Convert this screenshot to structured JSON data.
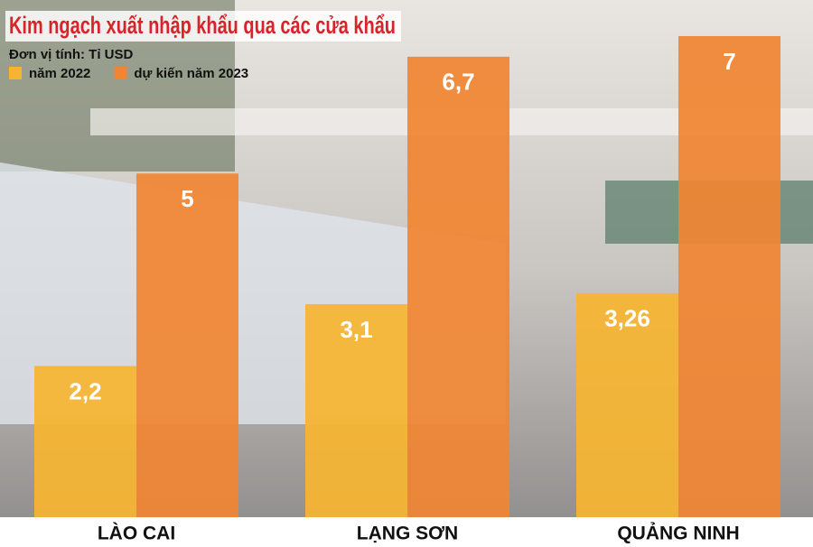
{
  "chart_data": {
    "type": "bar",
    "title": "Kim ngạch xuất nhập khẩu qua các cửa khẩu",
    "subtitle": "Đơn vị tính: Tỉ USD",
    "categories": [
      "LÀO CAI",
      "LẠNG SƠN",
      "QUẢNG NINH"
    ],
    "series": [
      {
        "name": "năm 2022",
        "color": "#f6b531",
        "values": [
          2.2,
          3.1,
          3.26
        ],
        "value_labels": [
          "2,2",
          "3,1",
          "3,26"
        ]
      },
      {
        "name": "dự kiến năm 2023",
        "color": "#f08533",
        "values": [
          5,
          6.7,
          7
        ],
        "value_labels": [
          "5",
          "6,7",
          "7"
        ]
      }
    ],
    "ylim": [
      0,
      7
    ],
    "legend": "top-left"
  }
}
